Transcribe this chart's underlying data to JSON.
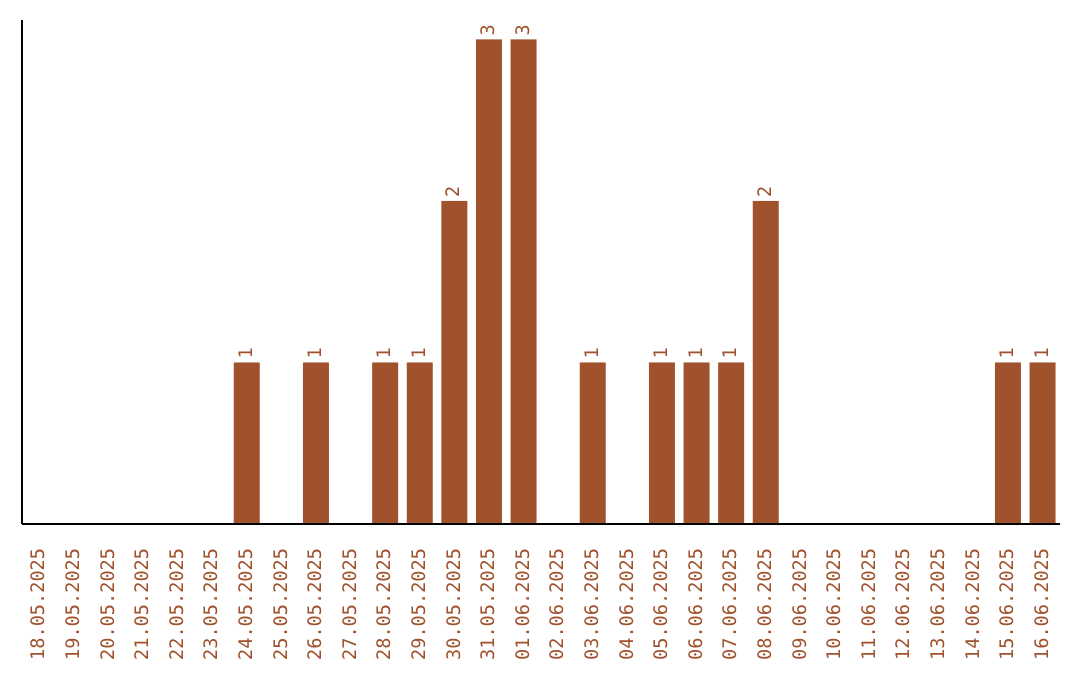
{
  "chart_data": {
    "type": "bar",
    "categories": [
      "18.05.2025",
      "19.05.2025",
      "20.05.2025",
      "21.05.2025",
      "22.05.2025",
      "23.05.2025",
      "24.05.2025",
      "25.05.2025",
      "26.05.2025",
      "27.05.2025",
      "28.05.2025",
      "29.05.2025",
      "30.05.2025",
      "31.05.2025",
      "01.06.2025",
      "02.06.2025",
      "03.06.2025",
      "04.06.2025",
      "05.06.2025",
      "06.06.2025",
      "07.06.2025",
      "08.06.2025",
      "09.06.2025",
      "10.06.2025",
      "11.06.2025",
      "12.06.2025",
      "13.06.2025",
      "14.06.2025",
      "15.06.2025",
      "16.06.2025"
    ],
    "values": [
      0,
      0,
      0,
      0,
      0,
      0,
      1,
      0,
      1,
      0,
      1,
      1,
      2,
      3,
      3,
      0,
      1,
      0,
      1,
      1,
      1,
      2,
      0,
      0,
      0,
      0,
      0,
      0,
      1,
      1
    ],
    "value_labels": [
      null,
      null,
      null,
      null,
      null,
      null,
      "1",
      null,
      "1",
      null,
      "1",
      "1",
      "2",
      "3",
      "3",
      null,
      "1",
      null,
      "1",
      "1",
      "1",
      "2",
      null,
      null,
      null,
      null,
      null,
      null,
      "1",
      "1"
    ],
    "color": "#a0522d",
    "tick_labels": "x",
    "grid": false
  }
}
